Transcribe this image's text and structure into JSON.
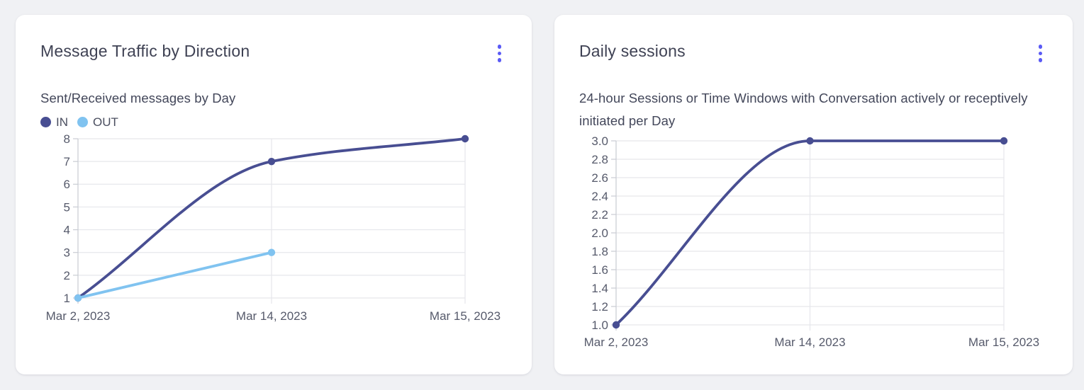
{
  "page": {
    "background": "#f0f1f4"
  },
  "colors": {
    "accent": "#5a5af5",
    "card_background": "#ffffff",
    "title_text": "#3f4254",
    "subtitle_text": "#43475a",
    "tick_label": "#565a6b",
    "grid_line": "#e6e7eb",
    "axis_line": "#c9ccd3",
    "line_in": "#484e92",
    "line_out": "#80c3f0"
  },
  "cards": [
    {
      "menu_icon": "kebab-menu-icon"
    },
    {
      "menu_icon": "kebab-menu-icon"
    }
  ],
  "chart_data": [
    {
      "type": "line",
      "title": "Message Traffic by Direction",
      "subtitle": "Sent/Received messages by Day",
      "categories": [
        "Mar 2, 2023",
        "Mar 14, 2023",
        "Mar 15, 2023"
      ],
      "series": [
        {
          "name": "IN",
          "color": "#484e92",
          "values": [
            1,
            7,
            8
          ]
        },
        {
          "name": "OUT",
          "color": "#80c3f0",
          "values": [
            1,
            3,
            null
          ]
        }
      ],
      "xlabel": "",
      "ylabel": "",
      "ylim": [
        1,
        8
      ],
      "ytick_step": 1,
      "ytick_decimals": 0,
      "grid": true,
      "smooth": true,
      "legend_position": "top-left"
    },
    {
      "type": "line",
      "title": "Daily sessions",
      "subtitle": "24-hour Sessions or Time Windows with Conversation actively or receptively initiated per Day",
      "categories": [
        "Mar 2, 2023",
        "Mar 14, 2023",
        "Mar 15, 2023"
      ],
      "series": [
        {
          "name": "Daily sessions",
          "color": "#484e92",
          "values": [
            1.0,
            3.0,
            3.0
          ]
        }
      ],
      "xlabel": "",
      "ylabel": "",
      "ylim": [
        1.0,
        3.0
      ],
      "ytick_step": 0.2,
      "ytick_decimals": 1,
      "grid": true,
      "smooth": true,
      "legend_position": "none"
    }
  ]
}
